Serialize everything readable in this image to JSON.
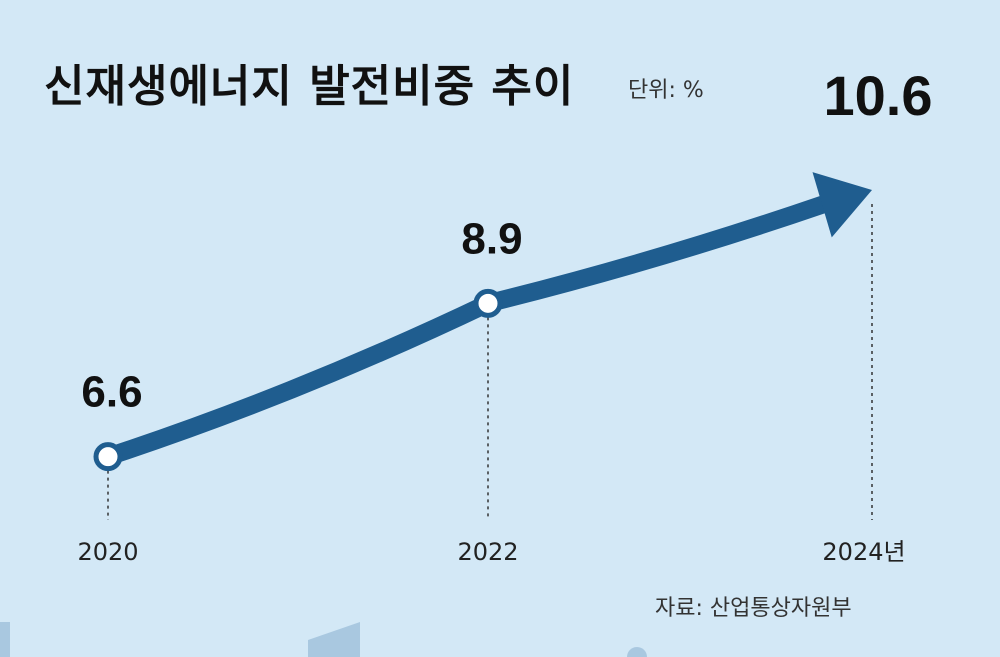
{
  "title": "신재생에너지 발전비중 추이",
  "unit": "단위: %",
  "source": "자료: 산업통상자원부",
  "colors": {
    "background": "#d3e8f6",
    "line": "#1f5d8f",
    "text": "#111111"
  },
  "chart_data": {
    "type": "line",
    "title": "신재생에너지 발전비중 추이",
    "ylabel": "단위: %",
    "x": [
      "2020",
      "2022",
      "2024년"
    ],
    "values": [
      6.6,
      8.9,
      10.6
    ],
    "data_labels": [
      "6.6",
      "8.9",
      "10.6"
    ],
    "ylim": [
      4.0,
      11.5
    ],
    "grid": false,
    "legend": "none",
    "last_point_style": "arrow"
  }
}
